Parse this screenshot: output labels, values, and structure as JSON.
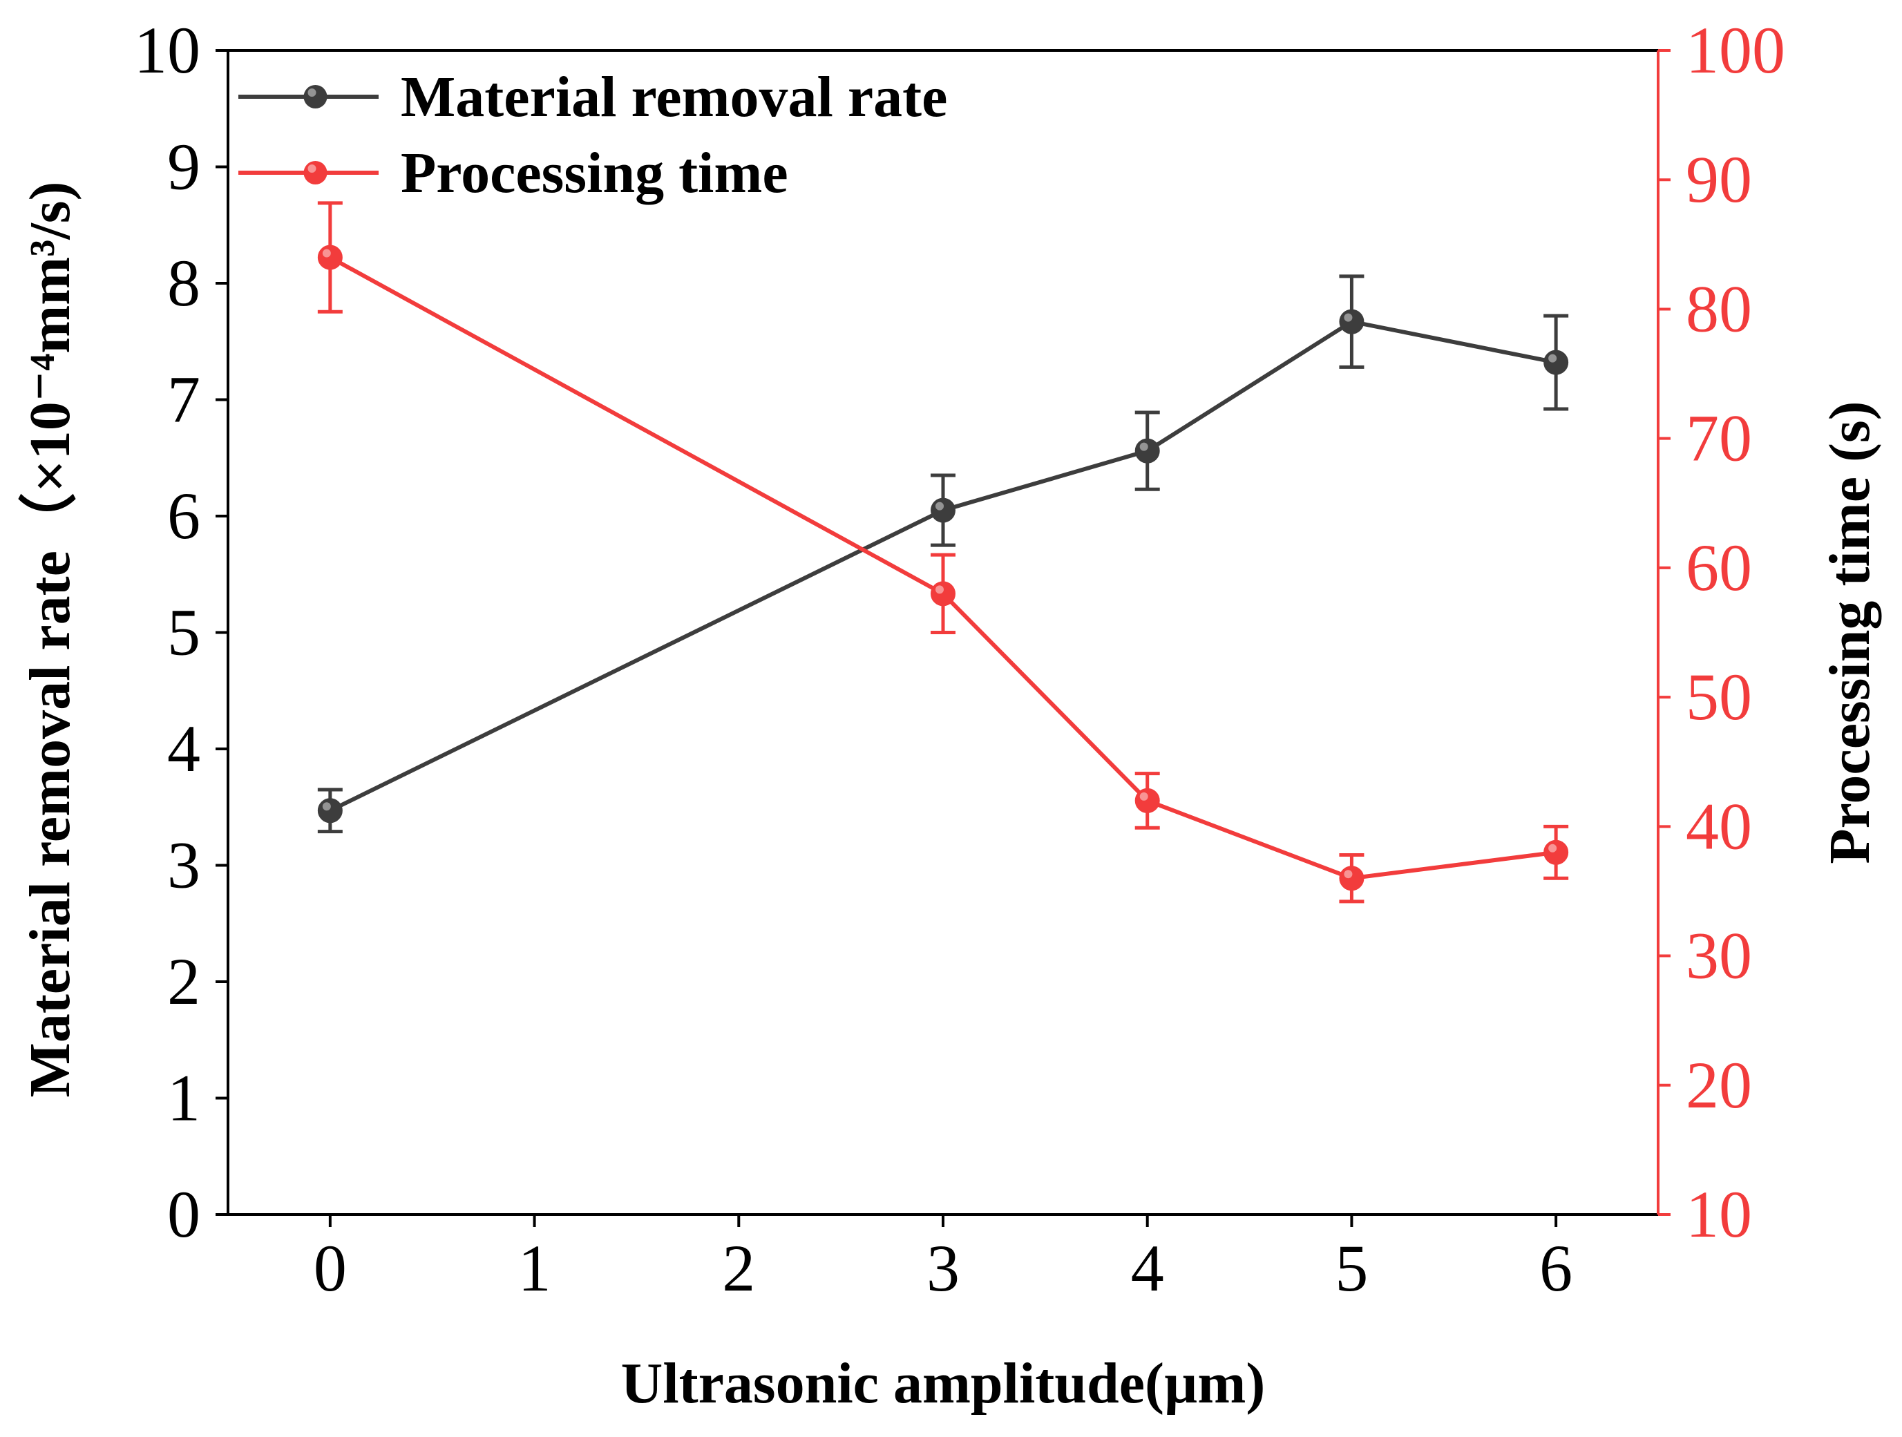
{
  "chart_data": {
    "type": "line",
    "xlabel": "Ultrasonic amplitude(µm)",
    "ylabel_left": "Material removal rate（×10⁻⁴mm³/s)",
    "ylabel_right": "Processing time (s)",
    "xlim": [
      -0.5,
      6.5
    ],
    "ylim_left": [
      0,
      10
    ],
    "ylim_right": [
      10,
      100
    ],
    "x_ticks": [
      "0",
      "1",
      "2",
      "3",
      "4",
      "5",
      "6"
    ],
    "y_left_ticks": [
      "0",
      "1",
      "2",
      "3",
      "4",
      "5",
      "6",
      "7",
      "8",
      "9",
      "10"
    ],
    "y_right_ticks": [
      "10",
      "20",
      "30",
      "40",
      "50",
      "60",
      "70",
      "80",
      "90",
      "100"
    ],
    "legend_position": "top-left",
    "series": [
      {
        "name": "Material removal rate",
        "axis": "left",
        "color": "#3d3d3d",
        "x": [
          0,
          3,
          4,
          5,
          6
        ],
        "values": [
          3.47,
          6.05,
          6.56,
          7.67,
          7.32
        ],
        "errors": [
          0.18,
          0.3,
          0.33,
          0.39,
          0.4
        ]
      },
      {
        "name": "Processing time",
        "axis": "right",
        "color": "#f23c3c",
        "x": [
          0,
          3,
          4,
          5,
          6
        ],
        "values": [
          84.0,
          58.0,
          42.0,
          36.0,
          38.0
        ],
        "errors": [
          4.2,
          3.0,
          2.1,
          1.8,
          2.0
        ]
      }
    ]
  }
}
